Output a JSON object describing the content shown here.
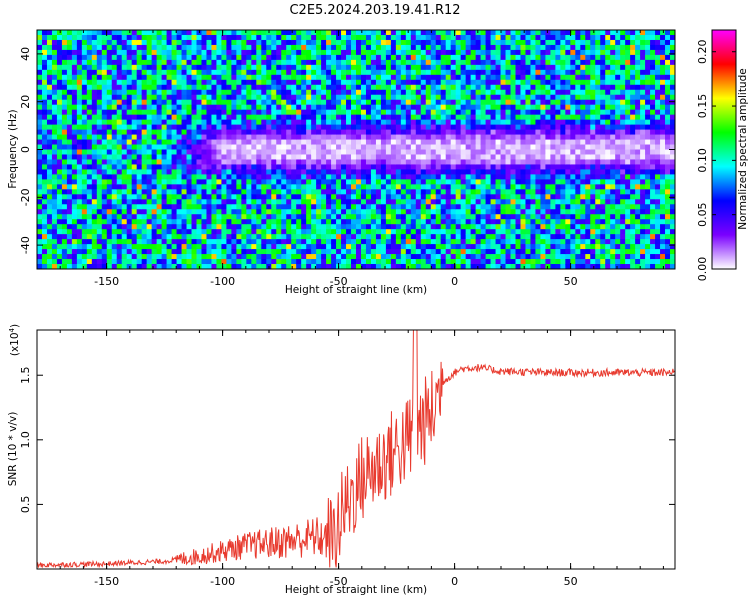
{
  "title": "C2E5.2024.203.19.41.R12",
  "chart_data": [
    {
      "type": "heatmap",
      "xlabel": "Height of straight line (km)",
      "ylabel": "Frequency (Hz)",
      "xlim": [
        -180,
        95
      ],
      "ylim": [
        -50,
        50
      ],
      "xticks": [
        -150,
        -100,
        -50,
        0,
        50
      ],
      "xtick_labels": [
        "-150",
        "-100",
        "-50",
        "0",
        "50"
      ],
      "yticks": [
        -40,
        -20,
        0,
        20,
        40
      ],
      "ytick_labels": [
        "-40",
        "-20",
        "0",
        "20",
        "40"
      ],
      "colorbar": {
        "label": "Normalized spectral amplitude",
        "range": [
          0.0,
          0.22
        ],
        "ticks": [
          0.0,
          0.05,
          0.1,
          0.15,
          0.2
        ],
        "tick_labels": [
          "0.00",
          "0.05",
          "0.10",
          "0.15",
          "0.20"
        ],
        "colormap": [
          "#ffffff",
          "#7a00ff",
          "#0000ff",
          "#00ffff",
          "#00ff00",
          "#ffff00",
          "#ff0000",
          "#ff00ff"
        ]
      },
      "features": {
        "low_amplitude_band_center_hz": 0,
        "low_amplitude_band_halfwidth_hz": 10,
        "band_start_km": -115
      }
    },
    {
      "type": "line",
      "xlabel": "Height of straight line (km)",
      "ylabel": "SNR (10 * v/v)",
      "scale_label_base": "(x10",
      "scale_label_exp": "4",
      "scale_label_close": ")",
      "xlim": [
        -180,
        95
      ],
      "ylim": [
        0,
        1.85
      ],
      "xticks": [
        -150,
        -100,
        -50,
        0,
        50
      ],
      "xtick_labels": [
        "-150",
        "-100",
        "-50",
        "0",
        "50"
      ],
      "yticks": [
        0.5,
        1.0,
        1.5
      ],
      "ytick_labels": [
        "0.5",
        "1.0",
        "1.5"
      ],
      "color": "#e83a2e",
      "series": [
        {
          "x": [
            -180,
            -150,
            -125,
            -110,
            -100,
            -90,
            -80,
            -70,
            -60,
            -52,
            -48,
            -40,
            -30,
            -20,
            -15,
            -10,
            -5,
            0,
            3,
            10,
            20,
            40,
            60,
            80,
            95
          ],
          "y": [
            0.03,
            0.04,
            0.06,
            0.1,
            0.14,
            0.18,
            0.2,
            0.22,
            0.25,
            0.22,
            0.45,
            0.7,
            0.85,
            1.0,
            1.1,
            1.2,
            1.45,
            1.52,
            1.55,
            1.56,
            1.53,
            1.52,
            1.52,
            1.52,
            1.52
          ]
        }
      ],
      "notes": [
        "spike near -17 km reaching about 1.85",
        "large oscillations between -55 and -10 km"
      ]
    }
  ]
}
